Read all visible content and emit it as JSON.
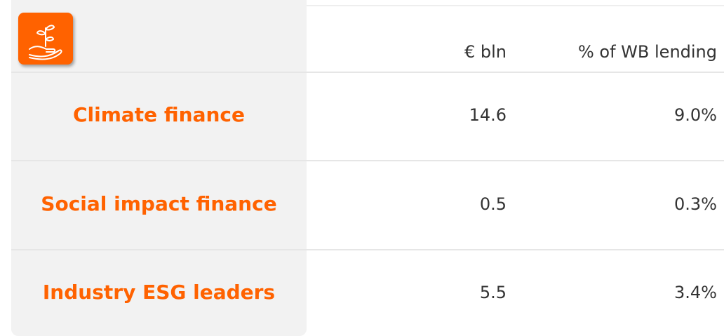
{
  "table": {
    "header": [
      "€ bln",
      "% of WB lending"
    ],
    "rows": [
      [
        "Climate finance",
        "14.6",
        "9.0%"
      ],
      [
        "Social impact finance",
        "0.5",
        "0.3%"
      ],
      [
        "Industry ESG leaders",
        "5.5",
        "3.4%"
      ]
    ]
  }
}
